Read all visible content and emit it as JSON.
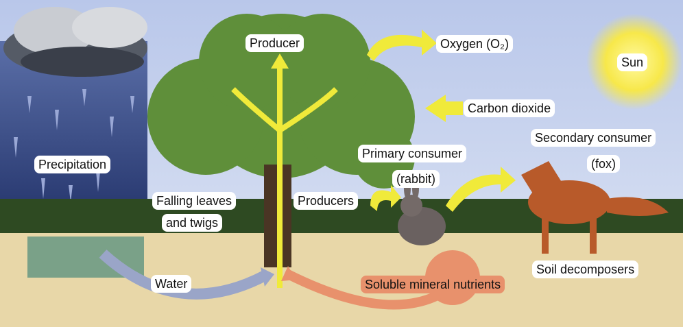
{
  "labels": {
    "producer": "Producer",
    "oxygen": "Oxygen (O₂)",
    "sun": "Sun",
    "carbon_dioxide": "Carbon dioxide",
    "secondary_consumer": "Secondary consumer",
    "fox": "(fox)",
    "primary_consumer": "Primary consumer",
    "rabbit": "(rabbit)",
    "precipitation": "Precipitation",
    "falling_leaves": "Falling leaves",
    "and_twigs": "and twigs",
    "producers": "Producers",
    "soil_decomposers": "Soil decomposers",
    "water": "Water",
    "nutrients": "Soluble mineral nutrients"
  }
}
